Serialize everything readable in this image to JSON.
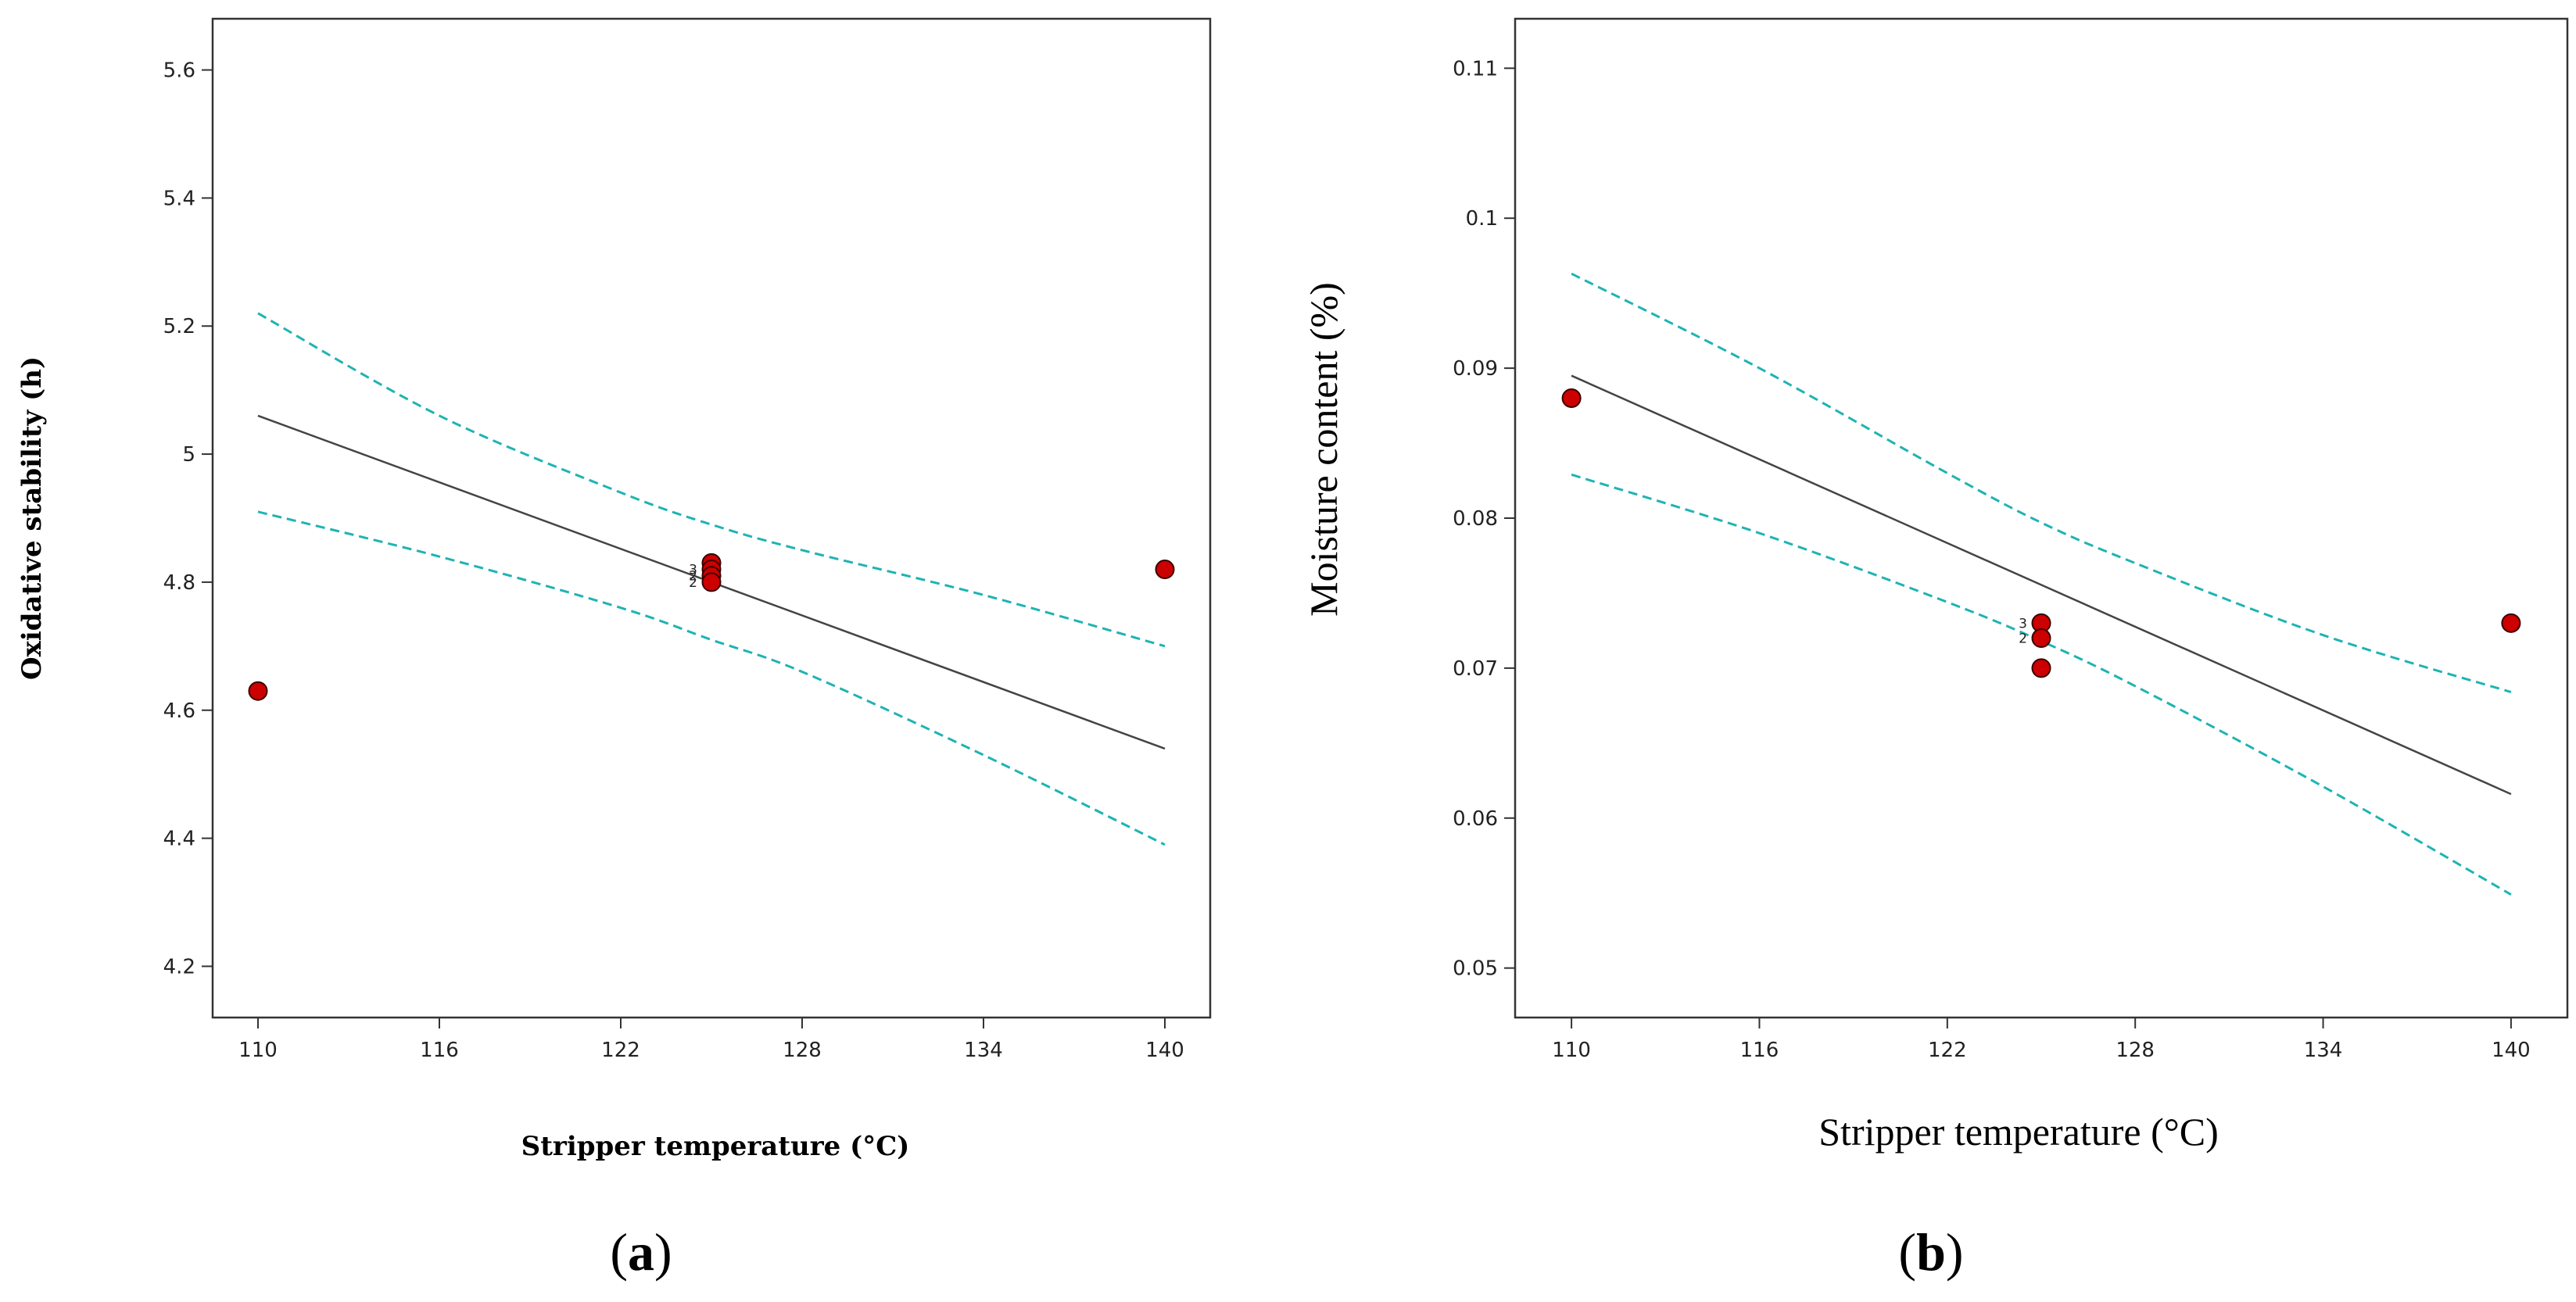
{
  "chart_data": [
    {
      "type": "scatter",
      "panel_label": "a",
      "title": "",
      "xlabel": "Stripper temperature (°C)",
      "ylabel": "Oxidative stability (h)",
      "xlim": [
        108.5,
        141.5
      ],
      "ylim": [
        4.12,
        5.68
      ],
      "xticks": [
        110,
        116,
        122,
        128,
        134,
        140
      ],
      "xtick_labels": [
        "110",
        "116",
        "122",
        "128",
        "134",
        "140"
      ],
      "yticks": [
        4.2,
        4.4,
        4.6,
        4.8,
        5.0,
        5.2,
        5.4,
        5.6
      ],
      "ytick_labels": [
        "4.2",
        "4.4",
        "4.6",
        "4.8",
        "5",
        "5.2",
        "5.4",
        "5.6"
      ],
      "points": [
        {
          "x": 110,
          "y": 4.63
        },
        {
          "x": 125,
          "y": 4.83
        },
        {
          "x": 125,
          "y": 4.82
        },
        {
          "x": 125,
          "y": 4.81
        },
        {
          "x": 125,
          "y": 4.8
        },
        {
          "x": 140,
          "y": 4.82
        }
      ],
      "point_color": "#cc0000",
      "point_labels": [
        {
          "x": 125,
          "y": 4.82,
          "text": "3"
        },
        {
          "x": 125,
          "y": 4.81,
          "text": "2"
        },
        {
          "x": 125,
          "y": 4.8,
          "text": "2"
        }
      ],
      "series": [
        {
          "name": "fit",
          "x": [
            110,
            140
          ],
          "y": [
            5.06,
            4.54
          ],
          "color": "#444444",
          "style": "solid"
        },
        {
          "name": "upper_ci",
          "x": [
            110,
            116,
            122,
            125,
            128,
            134,
            140
          ],
          "y": [
            5.22,
            5.06,
            4.94,
            4.89,
            4.85,
            4.78,
            4.7
          ],
          "color": "#1fb3b3",
          "style": "dashed"
        },
        {
          "name": "lower_ci",
          "x": [
            110,
            116,
            122,
            125,
            128,
            134,
            140
          ],
          "y": [
            4.91,
            4.84,
            4.76,
            4.71,
            4.66,
            4.53,
            4.39
          ],
          "color": "#1fb3b3",
          "style": "dashed"
        }
      ]
    },
    {
      "type": "scatter",
      "panel_label": "b",
      "title": "",
      "xlabel": "Stripper temperature (°C)",
      "ylabel": "Moisture content (%)",
      "xlim": [
        108.2,
        141.8
      ],
      "ylim": [
        0.0467,
        0.1133
      ],
      "xticks": [
        110,
        116,
        122,
        128,
        134,
        140
      ],
      "xtick_labels": [
        "110",
        "116",
        "122",
        "128",
        "134",
        "140"
      ],
      "yticks": [
        0.05,
        0.06,
        0.07,
        0.08,
        0.09,
        0.1,
        0.11
      ],
      "ytick_labels": [
        "0.05",
        "0.06",
        "0.07",
        "0.08",
        "0.09",
        "0.1",
        "0.11"
      ],
      "points": [
        {
          "x": 110,
          "y": 0.088
        },
        {
          "x": 125,
          "y": 0.073
        },
        {
          "x": 125,
          "y": 0.072
        },
        {
          "x": 125,
          "y": 0.07
        },
        {
          "x": 140,
          "y": 0.073
        }
      ],
      "point_color": "#cc0000",
      "point_labels": [
        {
          "x": 125,
          "y": 0.073,
          "text": "3"
        },
        {
          "x": 125,
          "y": 0.072,
          "text": "2"
        }
      ],
      "series": [
        {
          "name": "fit",
          "x": [
            110,
            140
          ],
          "y": [
            0.0895,
            0.0616
          ],
          "color": "#444444",
          "style": "solid"
        },
        {
          "name": "upper_ci",
          "x": [
            110,
            116,
            122,
            125,
            128,
            134,
            140
          ],
          "y": [
            0.0963,
            0.09,
            0.083,
            0.0797,
            0.077,
            0.0722,
            0.0684
          ],
          "color": "#1fb3b3",
          "style": "dashed"
        },
        {
          "name": "lower_ci",
          "x": [
            110,
            116,
            122,
            125,
            128,
            134,
            140
          ],
          "y": [
            0.0829,
            0.079,
            0.0744,
            0.0718,
            0.0688,
            0.0621,
            0.0549
          ],
          "color": "#1fb3b3",
          "style": "dashed"
        }
      ]
    }
  ]
}
